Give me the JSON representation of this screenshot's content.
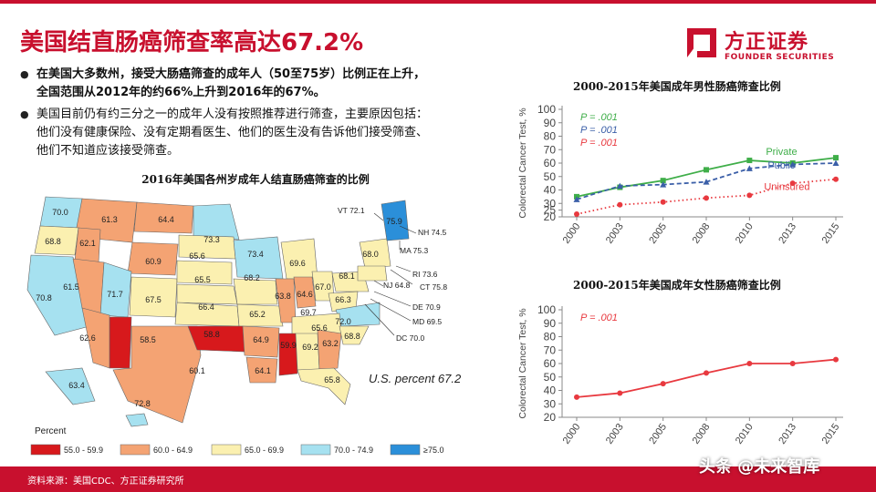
{
  "header": {
    "title": "美国结直肠癌筛查率高达67.2%"
  },
  "logo": {
    "name_cn": "方正证券",
    "name_en": "FOUNDER SECURITIES"
  },
  "bullets": [
    {
      "bold": true,
      "lines": [
        "在美国大多数州，接受大肠癌筛查的成年人（50至75岁）比例正在上升，",
        "全国范围从2012年的约66%上升到2016年的67%。"
      ]
    },
    {
      "bold": false,
      "lines": [
        "美国目前仍有约三分之一的成年人没有按照推荐进行筛查，主要原因包括：",
        "他们没有健康保险、没有定期看医生、他们的医生没有告诉他们接受筛查、",
        "他们不知道应该接受筛查。"
      ]
    }
  ],
  "map": {
    "title": "2016年美国各州岁成年人结直肠癌筛查的比例",
    "us_percent_label": "U.S. percent 67.2",
    "legend_title": "Percent",
    "legend": [
      {
        "label": "55.0 - 59.9",
        "color": "#d7191c"
      },
      {
        "label": "60.0 - 64.9",
        "color": "#f4a373"
      },
      {
        "label": "65.0 - 69.9",
        "color": "#fbf0b0"
      },
      {
        "label": "70.0 - 74.9",
        "color": "#a6e1f0"
      },
      {
        "label": "≥75.0",
        "color": "#2b8fd9"
      }
    ],
    "state_values": [
      "70.0",
      "61.3",
      "64.4",
      "73.3",
      "75.9",
      "68.8",
      "62.1",
      "65.6",
      "73.4",
      "69.6",
      "68.0",
      "60.9",
      "65.5",
      "68.2",
      "68.1",
      "61.5",
      "71.7",
      "67.5",
      "63.8",
      "64.6",
      "67.0",
      "66.3",
      "70.8",
      "66.4",
      "65.2",
      "69.7",
      "72.0",
      "65.6",
      "62.6",
      "58.5",
      "58.8",
      "64.9",
      "59.9",
      "69.2",
      "63.2",
      "68.8",
      "60.1",
      "64.1",
      "65.8",
      "63.4",
      "72.8"
    ],
    "callouts": [
      "VT 72.1",
      "NH 74.5",
      "MA 75.3",
      "RI 73.6",
      "CT 75.8",
      "NJ 64.8",
      "DE 70.9",
      "MD 69.5",
      "DC 70.0"
    ]
  },
  "footer": {
    "source": "资料来源：美国CDC、方正证券研究所",
    "watermark": "头条 @未来智库"
  },
  "chart_data": [
    {
      "type": "line",
      "title": "2000-2015年美国成年男性肠癌筛查比例",
      "ylabel": "Colorectal Cancer Test, %",
      "x": [
        "2000",
        "2003",
        "2005",
        "2008",
        "2010",
        "2013",
        "2015"
      ],
      "ylim": [
        20,
        100
      ],
      "yticks": [
        20,
        25,
        30,
        40,
        50,
        60,
        70,
        80,
        90,
        100
      ],
      "pvalues": [
        {
          "text": "P = .001",
          "color": "#3fae49"
        },
        {
          "text": "P = .001",
          "color": "#3b5fa8"
        },
        {
          "text": "P = .001",
          "color": "#e8393f"
        }
      ],
      "series": [
        {
          "name": "Private",
          "color": "#3fae49",
          "style": "solid",
          "values": [
            35,
            42,
            47,
            55,
            62,
            60,
            64
          ]
        },
        {
          "name": "Public",
          "color": "#3b5fa8",
          "style": "dashed",
          "values": [
            33,
            43,
            44,
            46,
            56,
            59,
            60
          ]
        },
        {
          "name": "Uninsured",
          "color": "#e8393f",
          "style": "dotted",
          "values": [
            22,
            29,
            31,
            34,
            36,
            45,
            48
          ]
        }
      ]
    },
    {
      "type": "line",
      "title": "2000-2015年美国成年女性肠癌筛查比例",
      "ylabel": "Colorectal Cancer Test, %",
      "x": [
        "2000",
        "2003",
        "2005",
        "2008",
        "2010",
        "2013",
        "2015"
      ],
      "ylim": [
        20,
        100
      ],
      "yticks": [
        20,
        30,
        40,
        50,
        60,
        70,
        80,
        90,
        100
      ],
      "pvalues": [
        {
          "text": "P = .001",
          "color": "#e8393f"
        }
      ],
      "series": [
        {
          "name": "",
          "color": "#e8393f",
          "style": "solid",
          "values": [
            35,
            38,
            45,
            53,
            60,
            60,
            63
          ]
        }
      ]
    }
  ]
}
